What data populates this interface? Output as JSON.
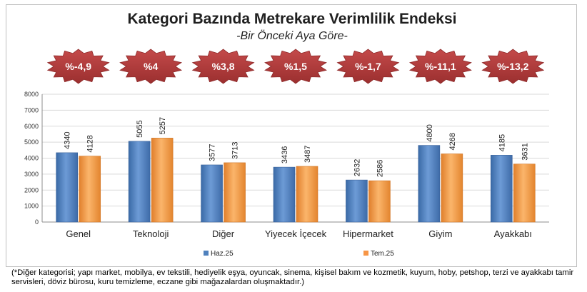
{
  "title": "Kategori Bazında Metrekare Verimlilik Endeksi",
  "subtitle": "-Bir Önceki Aya Göre-",
  "footnote": "(*Diğer kategorisi; yapı market, mobilya, ev tekstili, hediyelik eşya, oyuncak, sinema, kişisel bakım ve kozmetik, kuyum, hoby, petshop, terzi ve ayakkabı tamir servisleri, döviz bürosu, kuru temizleme, eczane gibi mağazalardan oluşmaktadır.)",
  "colors": {
    "series1": "#4f81bd",
    "series2": "#f79646",
    "badge": "#b23b3b",
    "badge_text": "#ffffff",
    "grid": "#d9d9d9"
  },
  "chart_data": {
    "type": "bar",
    "categories": [
      "Genel",
      "Teknoloji",
      "Diğer",
      "Yiyecek İçecek",
      "Hipermarket",
      "Giyim",
      "Ayakkabı"
    ],
    "series": [
      {
        "name": "Haz.25",
        "values": [
          4340,
          5055,
          3577,
          3436,
          2632,
          4800,
          4185
        ]
      },
      {
        "name": "Tem.25",
        "values": [
          4128,
          5257,
          3713,
          3487,
          2586,
          4268,
          3631
        ]
      }
    ],
    "change_labels": [
      "%-4,9",
      "%4",
      "%3,8",
      "%1,5",
      "%-1,7",
      "%-11,1",
      "%-13,2"
    ],
    "ylim": [
      0,
      8000
    ],
    "yticks": [
      0,
      1000,
      2000,
      3000,
      4000,
      5000,
      6000,
      7000,
      8000
    ],
    "grid": true,
    "legend_position": "bottom-left"
  }
}
